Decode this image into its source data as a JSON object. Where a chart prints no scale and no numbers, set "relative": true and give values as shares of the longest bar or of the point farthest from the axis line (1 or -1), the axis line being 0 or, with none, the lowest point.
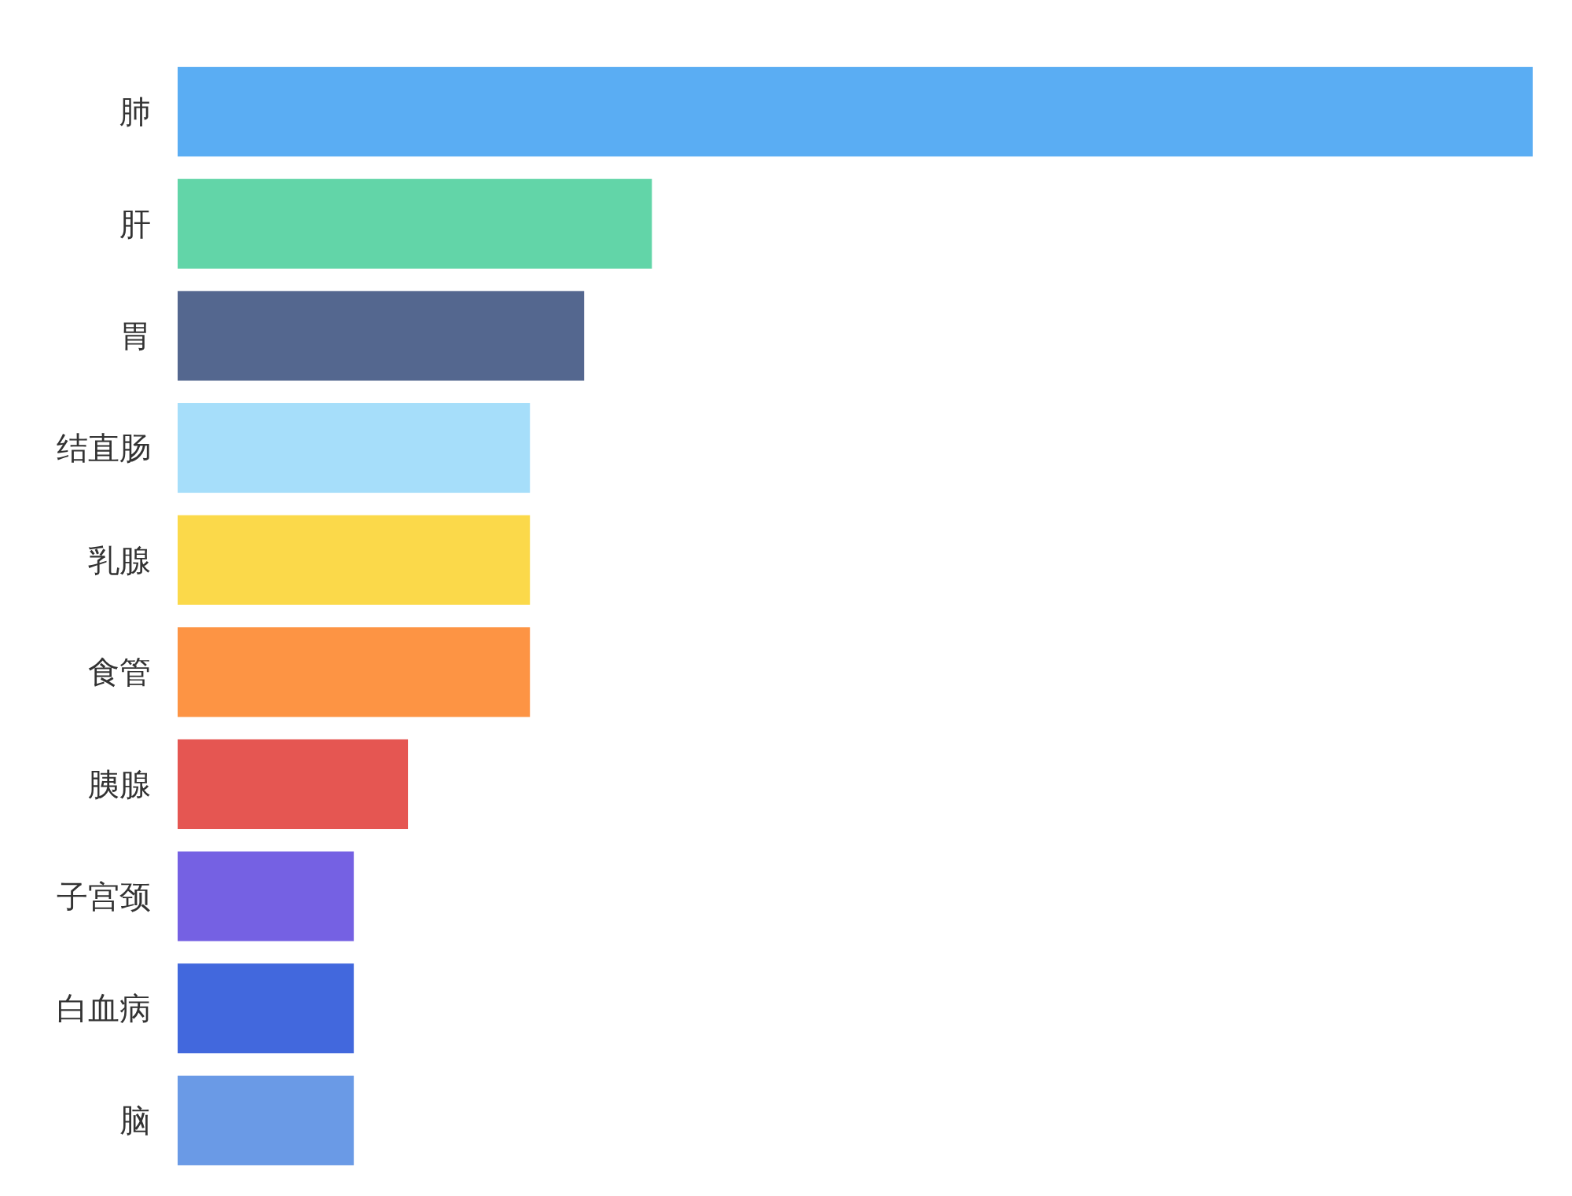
{
  "chart_data": {
    "type": "bar",
    "orientation": "horizontal",
    "relative": true,
    "categories": [
      "肺",
      "肝",
      "胃",
      "结直肠",
      "乳腺",
      "食管",
      "胰腺",
      "子宫颈",
      "白血病",
      "脑"
    ],
    "values": [
      1,
      0.35,
      0.3,
      0.26,
      0.26,
      0.26,
      0.17,
      0.13,
      0.13,
      0.13
    ],
    "colors": [
      "#5aadf3",
      "#62d5a8",
      "#54678f",
      "#a6defa",
      "#fbd94a",
      "#fd9444",
      "#e55652",
      "#7561e3",
      "#4268dd",
      "#6a9ae6"
    ]
  }
}
